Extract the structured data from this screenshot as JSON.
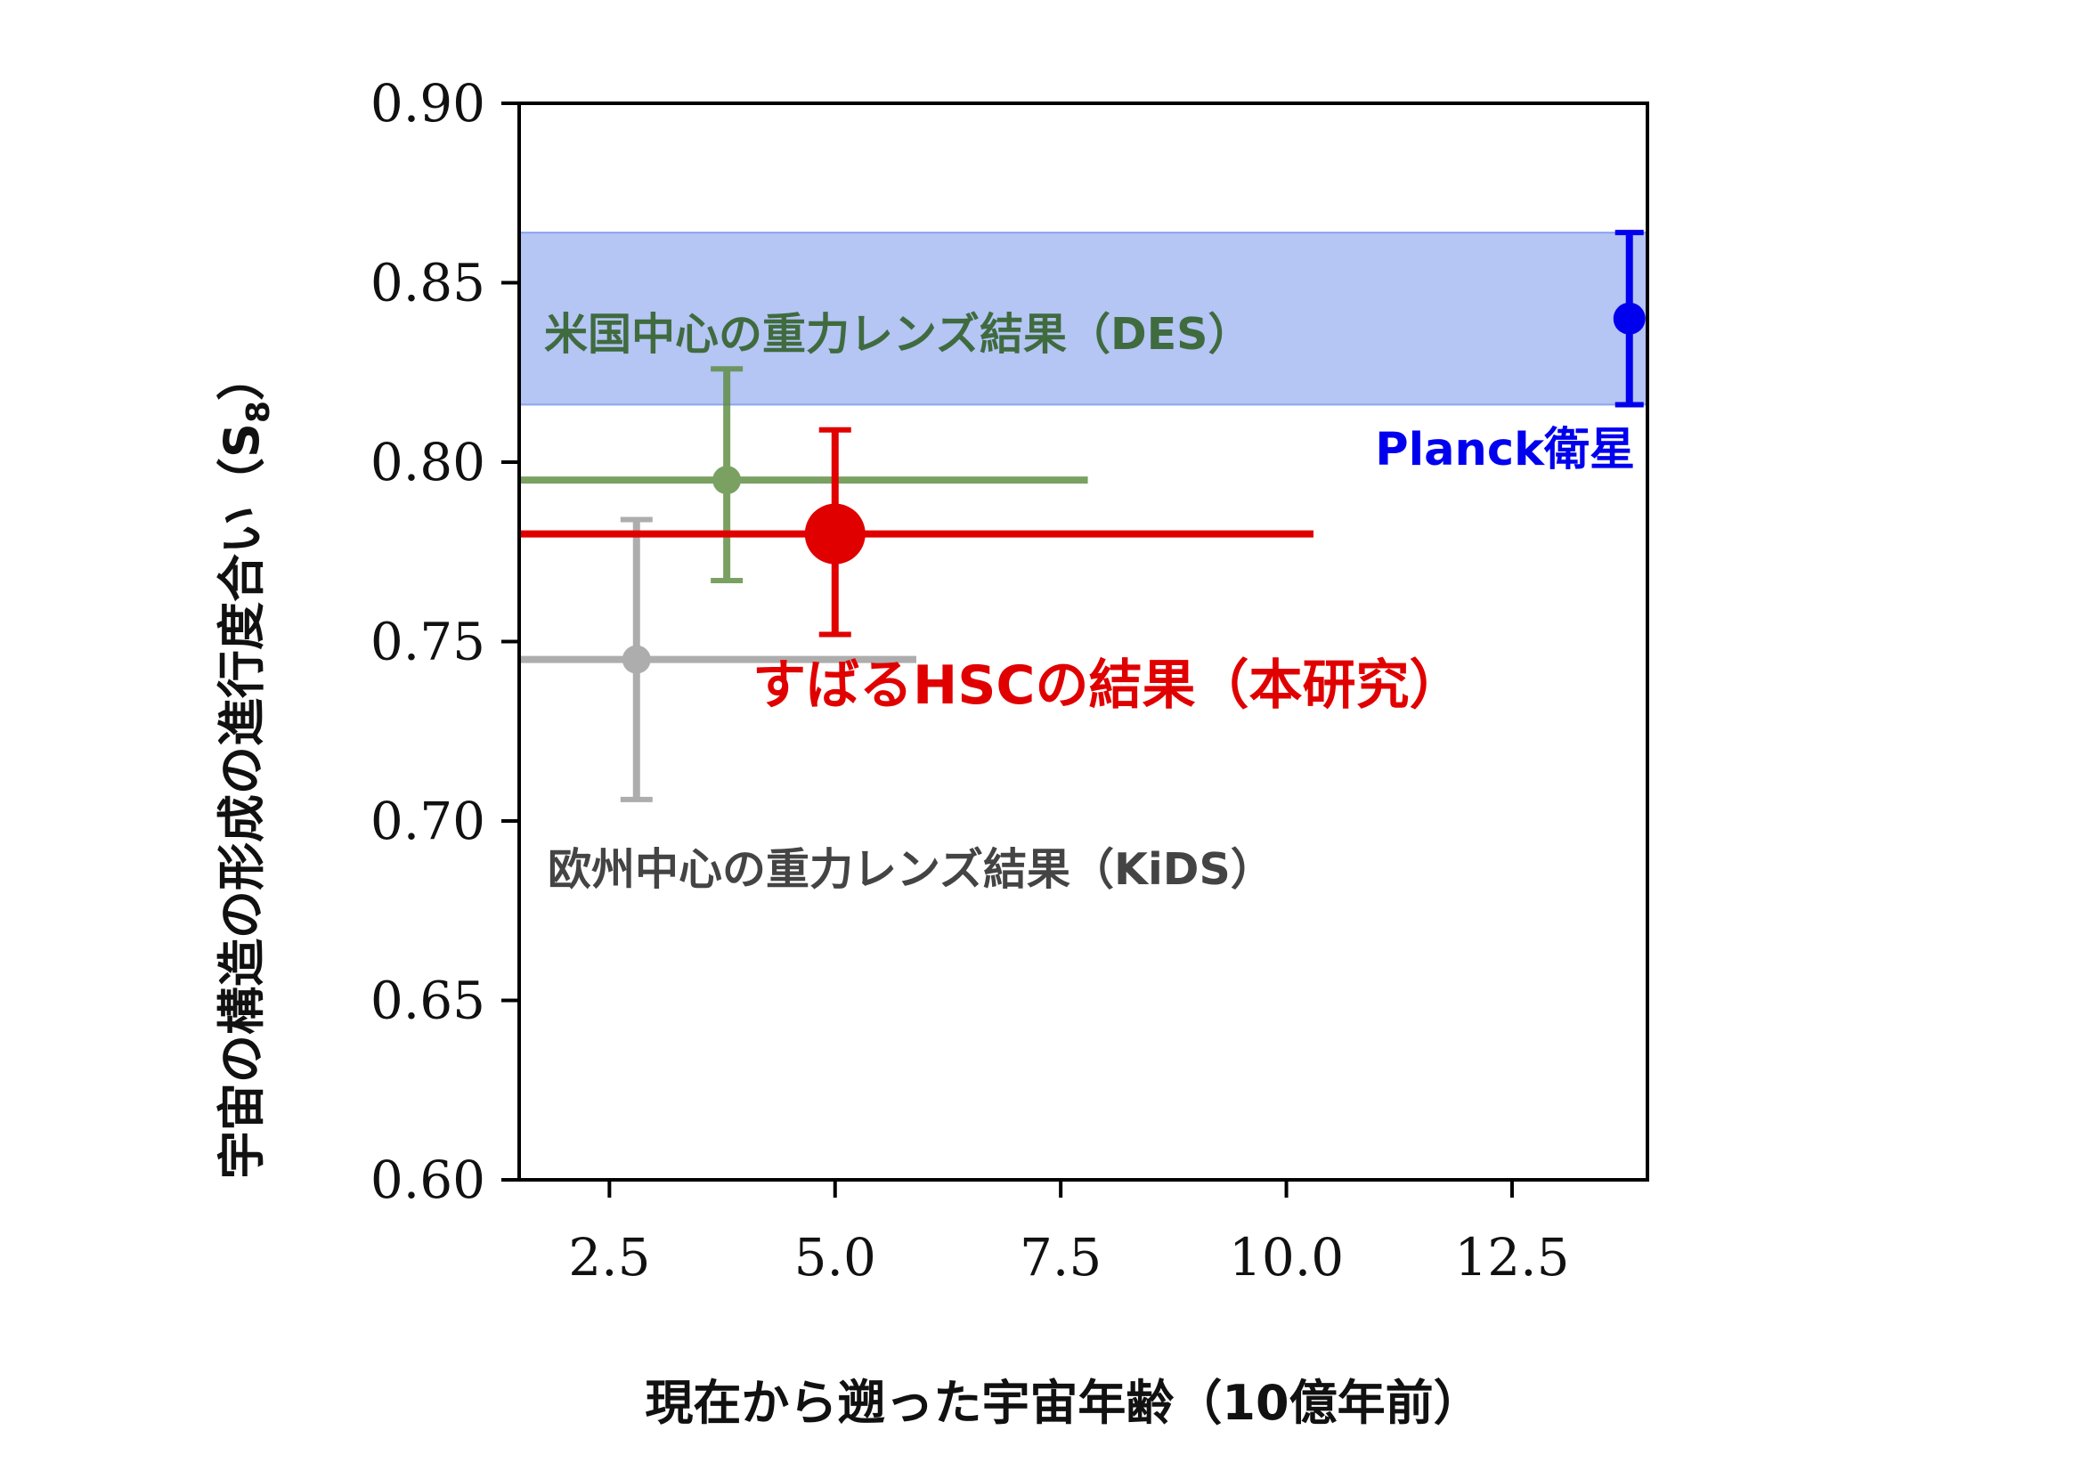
{
  "chart_data": {
    "type": "scatter",
    "xlabel": "現在から遡った宇宙年齢（10億年前）",
    "ylabel": "宇宙の構造の形成の進行度合い（S",
    "ylabel_sub": "8",
    "ylabel_close": "）",
    "xlim": [
      1.5,
      14.0
    ],
    "ylim": [
      0.6,
      0.9
    ],
    "x_ticks": [
      2.5,
      5.0,
      7.5,
      10.0,
      12.5
    ],
    "x_tick_labels": [
      "2.5",
      "5.0",
      "7.5",
      "10.0",
      "12.5"
    ],
    "y_ticks": [
      0.6,
      0.65,
      0.7,
      0.75,
      0.8,
      0.85,
      0.9
    ],
    "y_tick_labels": [
      "0.60",
      "0.65",
      "0.70",
      "0.75",
      "0.80",
      "0.85",
      "0.90"
    ],
    "band": {
      "y_low": 0.816,
      "y_high": 0.864,
      "color": "#5b7ee6"
    },
    "series": [
      {
        "name": "米国中心の重力レンズ結果（DES）",
        "color": "#5a8a3c",
        "x": 3.8,
        "y": 0.795,
        "x_low": 1.5,
        "x_high": 7.8,
        "y_low": 0.767,
        "y_high": 0.826
      },
      {
        "name": "すばるHSCの結果（本研究）",
        "color": "#e00000",
        "x": 5.0,
        "y": 0.78,
        "x_low": 1.5,
        "x_high": 10.3,
        "y_low": 0.752,
        "y_high": 0.809
      },
      {
        "name": "欧州中心の重力レンズ結果（KiDS）",
        "color": "#999999",
        "x": 2.8,
        "y": 0.745,
        "x_low": 1.5,
        "x_high": 5.9,
        "y_low": 0.706,
        "y_high": 0.784
      },
      {
        "name": "Planck衛星",
        "color": "#0000ee",
        "x": 13.8,
        "y": 0.84,
        "y_low": 0.816,
        "y_high": 0.864
      }
    ]
  }
}
